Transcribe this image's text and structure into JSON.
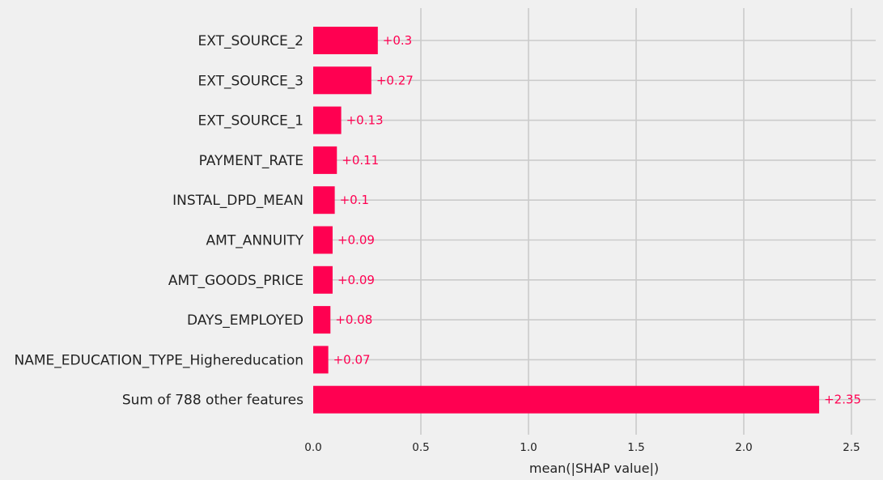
{
  "chart_data": {
    "type": "bar",
    "orientation": "horizontal",
    "categories": [
      "EXT_SOURCE_2",
      "EXT_SOURCE_3",
      "EXT_SOURCE_1",
      "PAYMENT_RATE",
      "INSTAL_DPD_MEAN",
      "AMT_ANNUITY",
      "AMT_GOODS_PRICE",
      "DAYS_EMPLOYED",
      "NAME_EDUCATION_TYPE_Highereducation",
      "Sum of 788 other features"
    ],
    "values": [
      0.3,
      0.27,
      0.13,
      0.11,
      0.1,
      0.09,
      0.09,
      0.08,
      0.07,
      2.35
    ],
    "value_labels": [
      "+0.3",
      "+0.27",
      "+0.13",
      "+0.11",
      "+0.1",
      "+0.09",
      "+0.09",
      "+0.08",
      "+0.07",
      "+2.35"
    ],
    "title": "",
    "xlabel": "mean(|SHAP value|)",
    "ylabel": "",
    "xlim": [
      0,
      2.6
    ],
    "xticks": [
      0.0,
      0.5,
      1.0,
      1.5,
      2.0,
      2.5
    ],
    "xtick_labels": [
      "0.0",
      "0.5",
      "1.0",
      "1.5",
      "2.0",
      "2.5"
    ],
    "grid": true,
    "colors": {
      "bar": "#ff0051",
      "grid": "#cbcbcb",
      "background": "#f0f0f0",
      "text": "#222222"
    }
  }
}
